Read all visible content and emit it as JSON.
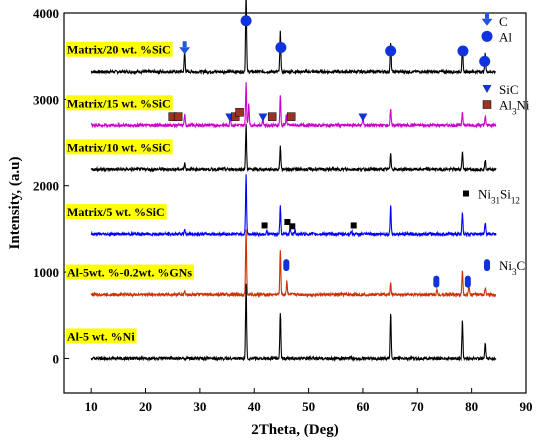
{
  "chart_data": {
    "type": "line",
    "xlabel": "2Theta, (Deg)",
    "ylabel": "Intensity, (a.u)",
    "xlim": [
      5,
      90
    ],
    "ylim": [
      -400,
      4000
    ],
    "x_ticks": [
      10,
      20,
      30,
      40,
      50,
      60,
      70,
      80,
      90
    ],
    "y_ticks": [
      0,
      1000,
      2000,
      3000,
      4000
    ],
    "grid": false,
    "series": [
      {
        "name": "Matrix/20 wt. %SiC",
        "color": "#000000",
        "baseline": 3320,
        "peaks": [
          [
            27.2,
            230
          ],
          [
            38.5,
            940
          ],
          [
            44.8,
            460
          ],
          [
            65.1,
            330
          ],
          [
            78.3,
            290
          ],
          [
            82.5,
            210
          ]
        ]
      },
      {
        "name": "Matrix/15 wt. %SiC",
        "color": "#cc00cc",
        "baseline": 2700,
        "peaks": [
          [
            27.2,
            120
          ],
          [
            35.6,
            90
          ],
          [
            38.5,
            500
          ],
          [
            39.0,
            260
          ],
          [
            41.6,
            80
          ],
          [
            44.8,
            340
          ],
          [
            45.9,
            120
          ],
          [
            60.0,
            80
          ],
          [
            65.1,
            180
          ],
          [
            78.3,
            160
          ],
          [
            82.5,
            100
          ]
        ]
      },
      {
        "name": "Matrix/10 wt. %SiC",
        "color": "#000000",
        "baseline": 2190,
        "peaks": [
          [
            27.2,
            80
          ],
          [
            38.5,
            520
          ],
          [
            44.8,
            270
          ],
          [
            65.1,
            200
          ],
          [
            78.3,
            210
          ],
          [
            82.5,
            100
          ]
        ]
      },
      {
        "name": "Matrix/5 wt. %SiC",
        "color": "#0000ff",
        "baseline": 1440,
        "peaks": [
          [
            27.2,
            60
          ],
          [
            38.5,
            700
          ],
          [
            42.3,
            40
          ],
          [
            44.8,
            320
          ],
          [
            46.6,
            80
          ],
          [
            47.5,
            60
          ],
          [
            57.9,
            40
          ],
          [
            65.1,
            330
          ],
          [
            78.3,
            260
          ],
          [
            82.5,
            140
          ]
        ]
      },
      {
        "name": "Al-5wt. %-0.2wt. %GNs",
        "color": "#cc3300",
        "baseline": 740,
        "peaks": [
          [
            27.2,
            40
          ],
          [
            38.5,
            770
          ],
          [
            44.8,
            520
          ],
          [
            46.0,
            160
          ],
          [
            65.1,
            130
          ],
          [
            73.6,
            50
          ],
          [
            78.3,
            290
          ],
          [
            79.5,
            110
          ],
          [
            82.5,
            70
          ]
        ]
      },
      {
        "name": "Al-5 wt. %Ni",
        "color": "#000000",
        "baseline": 0,
        "peaks": [
          [
            38.5,
            880
          ],
          [
            44.8,
            540
          ],
          [
            65.1,
            520
          ],
          [
            78.3,
            440
          ],
          [
            82.5,
            170
          ]
        ]
      }
    ],
    "markers": [
      {
        "shape": "arrow-down",
        "color": "#2255dd",
        "x": 27.2,
        "y": 3580
      },
      {
        "shape": "circle",
        "color": "#1133dd",
        "x": 38.5,
        "y": 3910
      },
      {
        "shape": "circle",
        "color": "#1133dd",
        "x": 44.9,
        "y": 3600
      },
      {
        "shape": "circle",
        "color": "#1133dd",
        "x": 65.1,
        "y": 3560
      },
      {
        "shape": "circle",
        "color": "#1133dd",
        "x": 78.4,
        "y": 3560
      },
      {
        "shape": "circle",
        "color": "#1133dd",
        "x": 82.4,
        "y": 3440
      },
      {
        "shape": "square",
        "color": "#993322",
        "x": 25.0,
        "y": 2800
      },
      {
        "shape": "square",
        "color": "#993322",
        "x": 26.0,
        "y": 2800
      },
      {
        "shape": "triangle",
        "color": "#1133dd",
        "x": 35.5,
        "y": 2790
      },
      {
        "shape": "square",
        "color": "#993322",
        "x": 36.5,
        "y": 2800
      },
      {
        "shape": "square",
        "color": "#993322",
        "x": 37.3,
        "y": 2850
      },
      {
        "shape": "triangle",
        "color": "#1133dd",
        "x": 41.6,
        "y": 2790
      },
      {
        "shape": "square",
        "color": "#993322",
        "x": 43.3,
        "y": 2800
      },
      {
        "shape": "square",
        "color": "#993322",
        "x": 46.8,
        "y": 2800
      },
      {
        "shape": "triangle",
        "color": "#1133dd",
        "x": 60.0,
        "y": 2790
      },
      {
        "shape": "small-square",
        "color": "#000000",
        "x": 41.9,
        "y": 1540
      },
      {
        "shape": "small-square",
        "color": "#000000",
        "x": 46.1,
        "y": 1580
      },
      {
        "shape": "small-square",
        "color": "#000000",
        "x": 47.0,
        "y": 1530
      },
      {
        "shape": "small-square",
        "color": "#000000",
        "x": 58.3,
        "y": 1540
      },
      {
        "shape": "pill",
        "color": "#1133dd",
        "x": 45.9,
        "y": 1080
      },
      {
        "shape": "pill",
        "color": "#1133dd",
        "x": 73.5,
        "y": 890
      },
      {
        "shape": "pill",
        "color": "#1133dd",
        "x": 79.3,
        "y": 890
      }
    ],
    "legend": [
      {
        "shape": "arrow-down",
        "color": "#2255dd",
        "label": "C",
        "y": 3910
      },
      {
        "shape": "circle",
        "color": "#1133dd",
        "label": "Al",
        "y": 3730
      },
      {
        "shape": "triangle",
        "color": "#1133dd",
        "label": "SiC",
        "y": 3120
      },
      {
        "shape": "square",
        "color": "#993322",
        "label": "Al",
        "sub": "3",
        "after": "Ni",
        "y": 2940
      },
      {
        "shape": "small-square",
        "color": "#000000",
        "label": "Ni",
        "sub": "31",
        "after": "Si",
        "sub2": "12",
        "y": 1910
      },
      {
        "shape": "pill",
        "color": "#1133dd",
        "label": "Ni",
        "sub": "3",
        "after": "C",
        "y": 1080
      }
    ]
  }
}
